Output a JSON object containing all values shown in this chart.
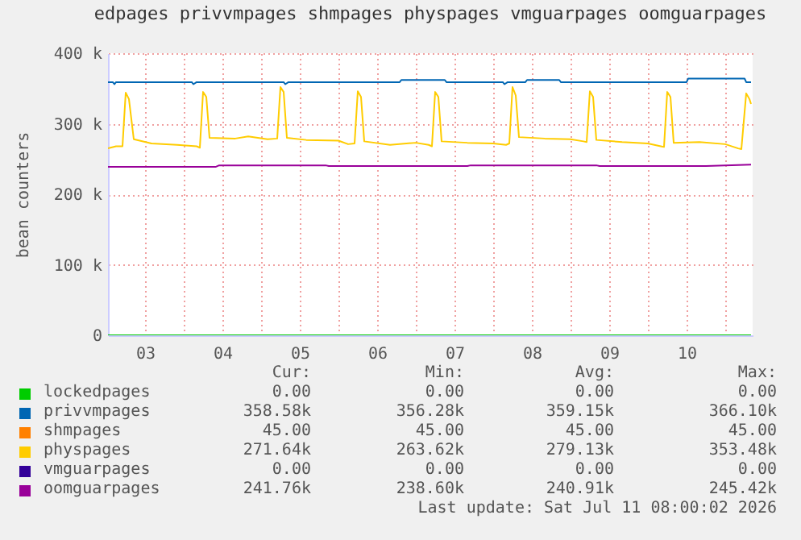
{
  "chart_data": {
    "type": "line",
    "title": "edpages privvmpages shmpages physpages vmguarpages oomguarpages",
    "ylabel": "bean counters",
    "xlim": [
      "2026-07-03T00:30",
      "2026-07-11T08:30"
    ],
    "xticks": [
      {
        "value": "2026-07-03T12:00",
        "label": "03"
      },
      {
        "value": "2026-07-04T00:00",
        "label": null
      },
      {
        "value": "2026-07-04T12:00",
        "label": "04"
      },
      {
        "value": "2026-07-05T00:00",
        "label": null
      },
      {
        "value": "2026-07-05T12:00",
        "label": "05"
      },
      {
        "value": "2026-07-06T00:00",
        "label": null
      },
      {
        "value": "2026-07-06T12:00",
        "label": "06"
      },
      {
        "value": "2026-07-07T00:00",
        "label": null
      },
      {
        "value": "2026-07-07T12:00",
        "label": "07"
      },
      {
        "value": "2026-07-08T00:00",
        "label": null
      },
      {
        "value": "2026-07-08T12:00",
        "label": "08"
      },
      {
        "value": "2026-07-09T00:00",
        "label": null
      },
      {
        "value": "2026-07-09T12:00",
        "label": "09"
      },
      {
        "value": "2026-07-10T00:00",
        "label": null
      },
      {
        "value": "2026-07-10T12:00",
        "label": "10"
      },
      {
        "value": "2026-07-11T00:00",
        "label": null
      }
    ],
    "ylim": [
      0,
      400000
    ],
    "yticks": [
      0,
      {
        "value": 100000,
        "label": "100 k"
      },
      {
        "value": 200000,
        "label": "200 k"
      },
      {
        "value": 300000,
        "label": "300 k"
      },
      {
        "value": 400000,
        "label": "400 k"
      }
    ],
    "grid": true,
    "legend": "bottom",
    "series": [
      {
        "name": "lockedpages",
        "color": "#00cc00",
        "x": [
          "2026-07-03T00:30",
          "2026-07-11T08:00"
        ],
        "values": [
          0,
          0
        ]
      },
      {
        "name": "privvmpages",
        "color": "#0066b3",
        "x": [
          "2026-07-03T00:30",
          "2026-07-03T02:00",
          "2026-07-03T02:30",
          "2026-07-03T03:00",
          "2026-07-04T02:30",
          "2026-07-04T03:00",
          "2026-07-04T04:00",
          "2026-07-05T07:00",
          "2026-07-05T07:30",
          "2026-07-05T08:30",
          "2026-07-06T19:00",
          "2026-07-06T19:30",
          "2026-07-07T09:00",
          "2026-07-07T09:30",
          "2026-07-08T03:00",
          "2026-07-08T03:30",
          "2026-07-08T04:30",
          "2026-07-08T10:00",
          "2026-07-08T10:30",
          "2026-07-08T20:30",
          "2026-07-08T21:00",
          "2026-07-10T12:00",
          "2026-07-10T12:30",
          "2026-07-11T06:00",
          "2026-07-11T06:30",
          "2026-07-11T08:00"
        ],
        "values": [
          359000,
          359000,
          356000,
          359000,
          359000,
          356000,
          359000,
          359000,
          356000,
          359000,
          359000,
          362000,
          362000,
          359000,
          359000,
          356000,
          359000,
          359000,
          362000,
          362000,
          359000,
          359000,
          364000,
          364000,
          359000,
          359000
        ]
      },
      {
        "name": "shmpages",
        "color": "#ff8000"
      },
      {
        "name": "physpages",
        "color": "#ffcc00",
        "x": [
          "2026-07-03T00:30",
          "2026-07-03T03:00",
          "2026-07-03T05:00",
          "2026-07-03T06:00",
          "2026-07-03T07:00",
          "2026-07-03T08:30",
          "2026-07-03T14:00",
          "2026-07-03T22:00",
          "2026-07-04T04:00",
          "2026-07-04T05:00",
          "2026-07-04T06:00",
          "2026-07-04T07:00",
          "2026-07-04T08:00",
          "2026-07-04T16:00",
          "2026-07-04T20:00",
          "2026-07-05T02:00",
          "2026-07-05T05:00",
          "2026-07-05T06:00",
          "2026-07-05T07:00",
          "2026-07-05T08:00",
          "2026-07-05T14:00",
          "2026-07-06T00:00",
          "2026-07-06T03:00",
          "2026-07-06T05:00",
          "2026-07-06T06:00",
          "2026-07-06T07:00",
          "2026-07-06T08:00",
          "2026-07-06T16:00",
          "2026-07-07T00:00",
          "2026-07-07T04:00",
          "2026-07-07T05:00",
          "2026-07-07T06:00",
          "2026-07-07T07:00",
          "2026-07-07T08:00",
          "2026-07-07T16:00",
          "2026-07-08T00:00",
          "2026-07-08T04:00",
          "2026-07-08T05:00",
          "2026-07-08T06:00",
          "2026-07-08T07:00",
          "2026-07-08T08:00",
          "2026-07-08T16:00",
          "2026-07-09T00:00",
          "2026-07-09T04:00",
          "2026-07-09T05:00",
          "2026-07-09T06:00",
          "2026-07-09T07:00",
          "2026-07-09T08:00",
          "2026-07-09T16:00",
          "2026-07-10T00:00",
          "2026-07-10T04:00",
          "2026-07-10T05:00",
          "2026-07-10T06:00",
          "2026-07-10T07:00",
          "2026-07-10T08:00",
          "2026-07-10T16:00",
          "2026-07-11T00:00",
          "2026-07-11T04:00",
          "2026-07-11T05:00",
          "2026-07-11T06:30",
          "2026-07-11T07:30",
          "2026-07-11T08:00"
        ],
        "values": [
          265000,
          268000,
          268000,
          344000,
          335000,
          278000,
          272000,
          270000,
          268000,
          266000,
          345000,
          338000,
          280000,
          279000,
          282000,
          278000,
          279000,
          352000,
          345000,
          280000,
          277000,
          276000,
          271000,
          272000,
          346000,
          338000,
          275000,
          270000,
          273000,
          270000,
          268000,
          345000,
          338000,
          275000,
          273000,
          272000,
          270000,
          272000,
          352000,
          340000,
          281000,
          279000,
          278000,
          275000,
          274000,
          346000,
          338000,
          277000,
          274000,
          272000,
          268000,
          267000,
          345000,
          338000,
          273000,
          274000,
          271000,
          265000,
          264000,
          343000,
          335000,
          328000
        ]
      },
      {
        "name": "vmguarpages",
        "color": "#330099"
      },
      {
        "name": "oomguarpages",
        "color": "#990099",
        "x": [
          "2026-07-03T00:30",
          "2026-07-04T10:00",
          "2026-07-04T11:00",
          "2026-07-05T20:00",
          "2026-07-05T21:00",
          "2026-07-07T16:00",
          "2026-07-07T17:00",
          "2026-07-09T08:00",
          "2026-07-09T09:00",
          "2026-07-10T18:00",
          "2026-07-11T08:00"
        ],
        "values": [
          239000,
          239000,
          241000,
          241000,
          240000,
          240000,
          241000,
          241000,
          240000,
          240000,
          242000
        ]
      }
    ],
    "annotations": [
      "Cur:",
      "Min:",
      "Avg:",
      "Max:",
      "0.00",
      "0.00",
      "0.00",
      "0.00",
      "358.58k",
      "356.28k",
      "359.15k",
      "366.10k",
      "45.00",
      "45.00",
      "45.00",
      "45.00",
      "271.64k",
      "263.62k",
      "279.13k",
      "353.48k",
      "0.00",
      "0.00",
      "0.00",
      "0.00",
      "241.76k",
      "238.60k",
      "240.91k",
      "245.42k",
      "Last update: Sat Jul 11 08:00:02 2026"
    ]
  }
}
